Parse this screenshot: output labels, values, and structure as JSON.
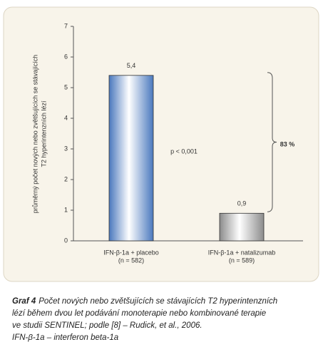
{
  "chart_data": {
    "type": "bar",
    "ylabel": [
      "průměrný počet nových nebo zvětšujících se stávajících",
      "T2 hyperintenzních lézí"
    ],
    "categories": [
      "IFN-β-1a + placebo",
      "IFN-β-1a + natalizumab"
    ],
    "category_notes": [
      "(n = 582)",
      "(n = 589)"
    ],
    "values": [
      5.4,
      0.9
    ],
    "value_labels": [
      "5,4",
      "0,9"
    ],
    "colors": [
      "#4a78bd",
      "#8c8c8c"
    ],
    "ylim": [
      0,
      7
    ],
    "yticks": [
      0,
      1,
      2,
      3,
      4,
      5,
      6,
      7
    ],
    "annotations": [
      "p < 0,001",
      "83 %"
    ]
  },
  "caption": {
    "label": "Graf 4",
    "lines": [
      "Počet nových nebo zvětšujících se stávajících T2 hyperintenzních",
      "lézí během dvou let podávání monoterapie nebo kombinované terapie",
      "ve studii SENTINEL; podle [8] – Rudick, et al., 2006.",
      "IFN-β-1a – interferon beta-1a"
    ]
  }
}
